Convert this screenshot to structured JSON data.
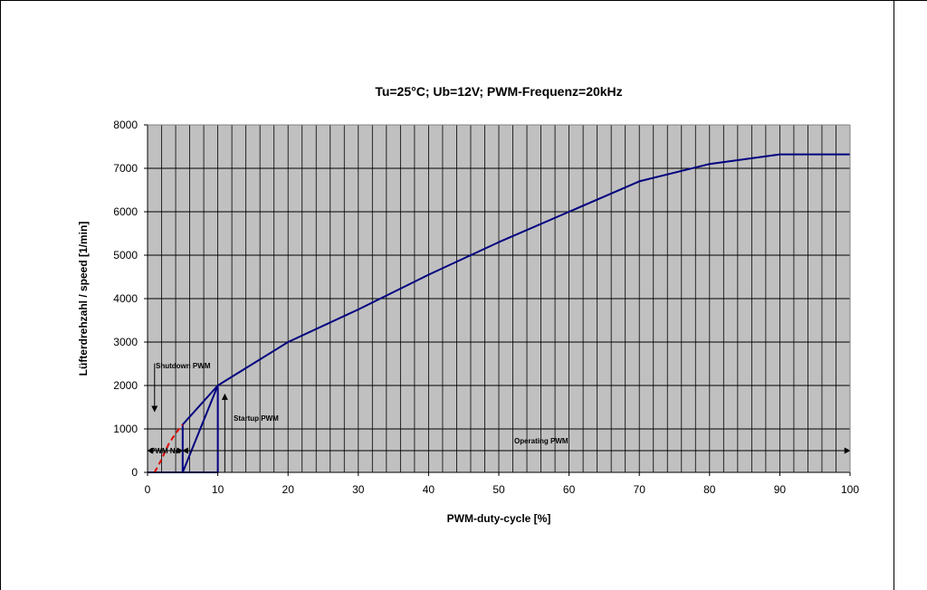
{
  "chart_data": {
    "type": "line",
    "title": "Tu=25°C; Ub=12V; PWM-Frequenz=20kHz",
    "xlabel": "PWM-duty-cycle [%]",
    "ylabel": "Lüfterdrehzahl / speed [1/min]",
    "xlim": [
      0,
      100
    ],
    "ylim": [
      0,
      8000
    ],
    "x_ticks": [
      0,
      10,
      20,
      30,
      40,
      50,
      60,
      70,
      80,
      90,
      100
    ],
    "y_ticks": [
      0,
      1000,
      2000,
      3000,
      4000,
      5000,
      6000,
      7000,
      8000
    ],
    "grid": true,
    "plot_background": "#c0c0c0",
    "series": [
      {
        "color": "#000080",
        "style": "solid",
        "x": [
          0,
          10,
          10,
          5,
          5,
          10,
          20,
          30,
          40,
          50,
          60,
          70,
          80,
          90,
          100
        ],
        "y": [
          0,
          0,
          2000,
          0,
          1100,
          2000,
          3000,
          3750,
          4550,
          5300,
          6000,
          6700,
          7100,
          7320,
          7320
        ]
      },
      {
        "color": "#e00000",
        "style": "dashed",
        "x": [
          1,
          2,
          3,
          4,
          5
        ],
        "y": [
          0,
          300,
          650,
          900,
          1100
        ]
      }
    ],
    "annotations": {
      "shutdown": {
        "text": "Shutdown PWM",
        "x": 1,
        "y": 2300
      },
      "startup": {
        "text": "Startup PWM",
        "x": 11,
        "y": 1800
      },
      "pwm_na": {
        "text": "PWM NA",
        "x_start": 0,
        "x_end": 5,
        "y": 500
      },
      "operating": {
        "text": "Operating PWM",
        "x_start": 5,
        "x_end": 100,
        "y": 500
      }
    }
  }
}
